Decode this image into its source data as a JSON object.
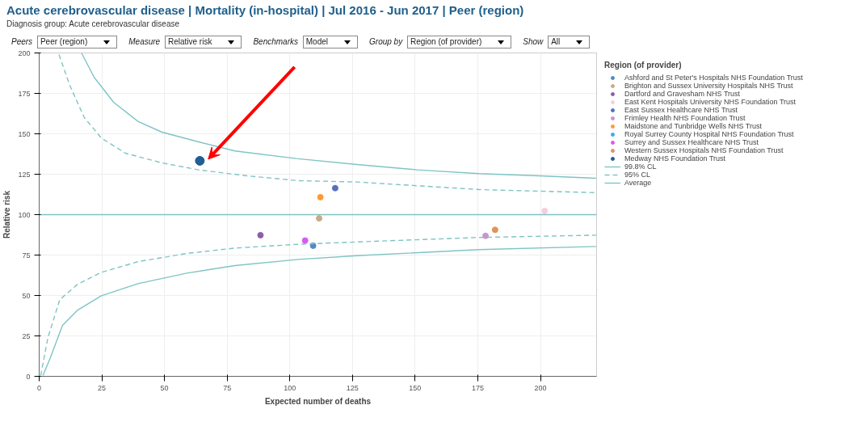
{
  "chart_data": {
    "type": "scatter",
    "title": "Acute cerebrovascular disease | Mortality (in-hospital) | Jul 2016 - Jun 2017 | Peer (region)",
    "subtitle": "Diagnosis group: Acute cerebrovascular disease",
    "annotations": [
      "Peers",
      "Peer (region)",
      "Measure",
      "Relative risk",
      "Benchmarks",
      "Model",
      "Group by",
      "Region (of provider)",
      "Show",
      "All"
    ],
    "xlabel": "Expected number of deaths",
    "ylabel": "Relative risk",
    "legend_title": "Region (of provider)",
    "xlim": [
      0,
      222.4
    ],
    "ylim": [
      0,
      200
    ],
    "xticks": [
      0,
      25,
      50,
      75,
      100,
      125,
      150,
      175,
      200
    ],
    "yticks": [
      0,
      25,
      50,
      75,
      100,
      125,
      150,
      175,
      200
    ],
    "grid": true,
    "legend": "right",
    "marker": "circle",
    "series": [
      {
        "name": "Ashford and St Peter's Hospitals NHS Foundation Trust",
        "color": "#4e8cc4",
        "x": [
          109.3
        ],
        "values": [
          80.8
        ]
      },
      {
        "name": "Brighton and Sussex University Hospitals NHS Trust",
        "color": "#c8ab8a",
        "x": [
          111.7
        ],
        "values": [
          97.7
        ]
      },
      {
        "name": "Dartford and Gravesham NHS Trust",
        "color": "#8a5fa8",
        "x": [
          88.3
        ],
        "values": [
          87.3
        ]
      },
      {
        "name": "East Kent Hospitals University NHS Foundation Trust",
        "color": "#f8cde0",
        "x": [
          201.7
        ],
        "values": [
          102.3
        ]
      },
      {
        "name": "East Sussex Healthcare NHS Trust",
        "color": "#5470c0",
        "x": [
          118.1
        ],
        "values": [
          116.4
        ]
      },
      {
        "name": "Frimley Health NHS Foundation Trust",
        "color": "#c896c8",
        "x": [
          178.1
        ],
        "values": [
          86.9
        ]
      },
      {
        "name": "Maidstone and Tunbridge Wells NHS Trust",
        "color": "#ff9933",
        "x": [
          112.2
        ],
        "values": [
          110.8
        ]
      },
      {
        "name": "Royal Surrey County Hospital NHS Foundation Trust",
        "color": "#3fa9f5"
      },
      {
        "name": "Surrey and Sussex Healthcare NHS Trust",
        "color": "#d65cf0",
        "x": [
          106.1
        ],
        "values": [
          84.0
        ]
      },
      {
        "name": "Western Sussex Hospitals NHS Foundation Trust",
        "color": "#e0935a",
        "x": [
          181.9
        ],
        "values": [
          90.6
        ]
      },
      {
        "name": "Medway NHS Foundation Trust",
        "color": "#1f5f91",
        "x": [
          64.1
        ],
        "values": [
          133.3
        ]
      },
      {
        "name": "99.8% CL",
        "type": "line",
        "marker": "none",
        "line_style": "solid",
        "color": "#7fc4c4",
        "x": [
          16.9,
          21.9,
          29.7,
          39.4,
          49,
          63.6,
          78.1,
          102.6,
          126.8,
          151,
          175.5,
          199.7,
          222.2
        ],
        "values": [
          200,
          185,
          169.5,
          157.7,
          151,
          145,
          139.4,
          134.7,
          131,
          127.7,
          125.4,
          124,
          122.5
        ]
      },
      {
        "name": "95% CL",
        "type": "line",
        "marker": "none",
        "line_style": "dashed",
        "color": "#7fc4c4",
        "x": [
          7.9,
          12.2,
          18,
          24.8,
          34.4,
          49,
          63.6,
          83,
          103.5,
          126.8,
          175.5,
          222.2
        ],
        "values": [
          199,
          180,
          160,
          147.4,
          138,
          132,
          127.7,
          124,
          121,
          120.2,
          115.5,
          113.6
        ]
      },
      {
        "name": "Average",
        "type": "line",
        "marker": "none",
        "line_style": "solid",
        "color": "#7fc4c4",
        "x": [
          0,
          222.4
        ],
        "values": [
          100,
          100
        ]
      },
      {
        "type": "line",
        "marker": "none",
        "line_style": "dashed",
        "color": "#7fc4c4",
        "x": [
          0.6,
          3.5,
          8.2,
          15.2,
          24.8,
          39.4,
          58.9,
          78.1,
          103.5,
          126.8,
          175.5,
          222.2
        ],
        "values": [
          0.5,
          24,
          47.4,
          56.8,
          64.3,
          70.9,
          76,
          79.3,
          81.7,
          83.1,
          85.9,
          87.3
        ]
      },
      {
        "type": "line",
        "marker": "none",
        "line_style": "solid",
        "color": "#7fc4c4",
        "x": [
          1.5,
          4.4,
          9.3,
          15.2,
          24.8,
          39.4,
          58.9,
          78.1,
          103.5,
          126.8,
          175.5,
          222.2
        ],
        "values": [
          0.5,
          11.3,
          31.5,
          40.8,
          49.8,
          57.3,
          63.8,
          68.5,
          72.3,
          74.6,
          78.4,
          80.3
        ]
      }
    ]
  }
}
